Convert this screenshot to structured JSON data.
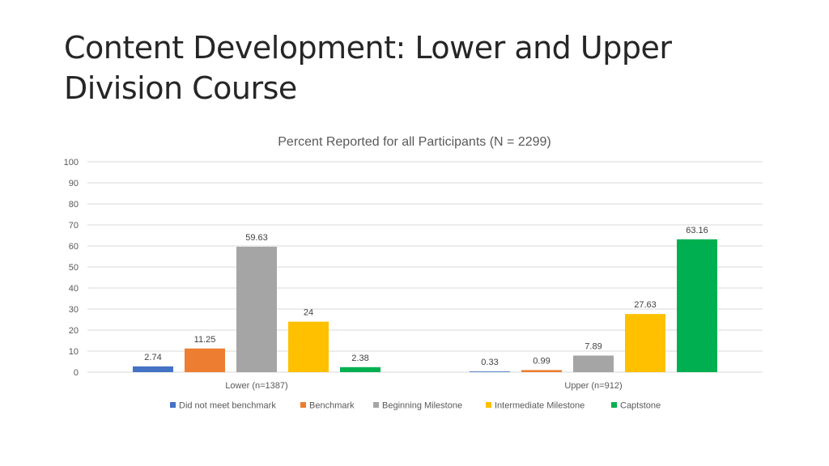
{
  "slide": {
    "title": "Content Development: Lower and Upper Division Course"
  },
  "chart_data": {
    "type": "bar",
    "title": "Percent Reported for all Participants (N = 2299)",
    "xlabel": "",
    "ylabel": "",
    "categories": [
      "Lower (n=1387)",
      "Upper (n=912)"
    ],
    "ylim": [
      0,
      100
    ],
    "yticks": [
      0,
      10,
      20,
      30,
      40,
      50,
      60,
      70,
      80,
      90,
      100
    ],
    "grid": true,
    "legend_position": "bottom",
    "series": [
      {
        "name": "Did not meet benchmark",
        "color": "#4472C4",
        "values": [
          2.74,
          0.33
        ]
      },
      {
        "name": "Benchmark",
        "color": "#ED7D31",
        "values": [
          11.25,
          0.99
        ]
      },
      {
        "name": "Beginning Milestone",
        "color": "#A5A5A5",
        "values": [
          59.63,
          7.89
        ]
      },
      {
        "name": "Intermediate Milestone",
        "color": "#FFC000",
        "values": [
          24,
          27.63
        ]
      },
      {
        "name": "Captstone",
        "color": "#00B050",
        "values": [
          2.38,
          63.16
        ]
      }
    ]
  }
}
